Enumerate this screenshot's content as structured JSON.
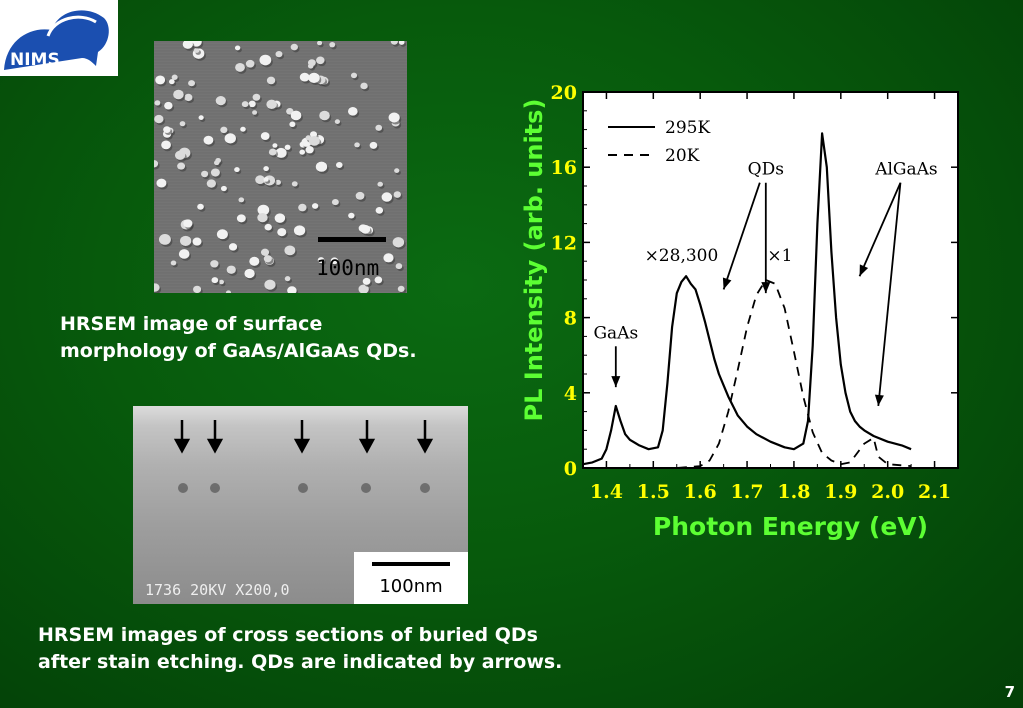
{
  "logo": {
    "text": "NIMS",
    "color_primary": "#1b4fb0"
  },
  "images": [
    {
      "scale_label": "100nm"
    },
    {
      "scale_label": "100nm",
      "info_text": "1736   20KV X200,0"
    }
  ],
  "captions": {
    "top": [
      "HRSEM image of surface",
      "morphology of GaAs/AlGaAs QDs."
    ],
    "bottom": [
      "HRSEM images of cross sections of buried QDs",
      "after stain etching. QDs are indicated by arrows."
    ]
  },
  "page_number": "7",
  "colors": {
    "axis_label": "#5cff33",
    "tick_label": "#ffff00",
    "background": "#075a0c"
  },
  "chart_data": {
    "type": "line",
    "xlabel": "Photon Energy (eV)",
    "ylabel": "PL Intensity (arb. units)",
    "xlim": [
      1.35,
      2.15
    ],
    "ylim": [
      0,
      20
    ],
    "xticks": [
      "1.4",
      "1.5",
      "1.6",
      "1.7",
      "1.8",
      "1.9",
      "2.0",
      "2.1"
    ],
    "yticks": [
      "0",
      "4",
      "8",
      "12",
      "16",
      "20"
    ],
    "legend_position": "top-left",
    "series": [
      {
        "name": "295K",
        "style": "solid",
        "x": [
          1.35,
          1.37,
          1.39,
          1.4,
          1.41,
          1.42,
          1.43,
          1.44,
          1.45,
          1.47,
          1.49,
          1.51,
          1.52,
          1.53,
          1.54,
          1.55,
          1.56,
          1.57,
          1.58,
          1.59,
          1.6,
          1.61,
          1.62,
          1.63,
          1.64,
          1.65,
          1.66,
          1.67,
          1.68,
          1.7,
          1.72,
          1.75,
          1.78,
          1.8,
          1.82,
          1.83,
          1.84,
          1.85,
          1.86,
          1.87,
          1.88,
          1.89,
          1.9,
          1.91,
          1.92,
          1.93,
          1.94,
          1.95,
          1.97,
          2.0,
          2.03,
          2.05
        ],
        "y": [
          0.2,
          0.3,
          0.5,
          1.0,
          2.0,
          3.3,
          2.5,
          1.8,
          1.5,
          1.2,
          1.0,
          1.1,
          2.0,
          4.5,
          7.5,
          9.3,
          9.9,
          10.2,
          9.8,
          9.5,
          8.7,
          7.8,
          6.8,
          5.8,
          5.0,
          4.4,
          3.8,
          3.3,
          2.8,
          2.2,
          1.8,
          1.4,
          1.1,
          1.0,
          1.3,
          2.5,
          6.5,
          13.0,
          17.8,
          16.0,
          11.5,
          8.0,
          5.5,
          4.0,
          3.0,
          2.5,
          2.2,
          2.0,
          1.7,
          1.4,
          1.2,
          1.0
        ]
      },
      {
        "name": "20K",
        "style": "dashed",
        "x": [
          1.45,
          1.5,
          1.55,
          1.6,
          1.62,
          1.64,
          1.66,
          1.68,
          1.7,
          1.72,
          1.74,
          1.76,
          1.78,
          1.8,
          1.82,
          1.84,
          1.86,
          1.88,
          1.9,
          1.92,
          1.95,
          1.97,
          1.98,
          2.0,
          2.05
        ],
        "y": [
          0.0,
          0.0,
          0.0,
          0.1,
          0.4,
          1.3,
          3.0,
          5.2,
          7.5,
          9.2,
          10.0,
          9.8,
          8.5,
          6.2,
          3.8,
          1.9,
          0.8,
          0.4,
          0.2,
          0.3,
          1.3,
          1.6,
          0.6,
          0.2,
          0.1
        ]
      }
    ],
    "annotations": [
      {
        "text": "GaAs",
        "x": 1.42,
        "y": 6.9,
        "arrows_to": [
          [
            1.42,
            4.3
          ]
        ]
      },
      {
        "text": "×28,300",
        "x": 1.56,
        "y": 11.0
      },
      {
        "text": "QDs",
        "x": 1.74,
        "y": 15.6,
        "arrows_to": [
          [
            1.65,
            9.5
          ],
          [
            1.74,
            9.3
          ]
        ]
      },
      {
        "text": "×1",
        "x": 1.77,
        "y": 11.0
      },
      {
        "text": "AlGaAs",
        "x": 2.04,
        "y": 15.6,
        "arrows_to": [
          [
            1.94,
            10.2
          ],
          [
            1.98,
            3.3
          ]
        ]
      }
    ]
  }
}
